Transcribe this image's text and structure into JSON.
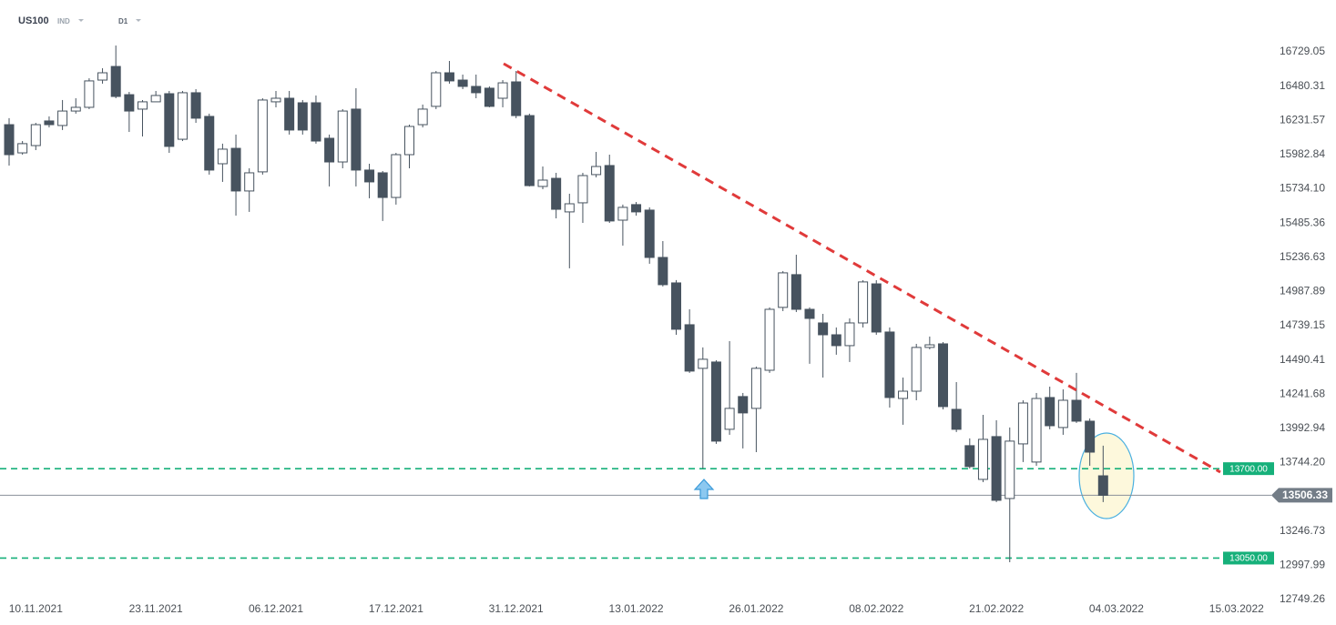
{
  "chart_data": {
    "type": "candlestick",
    "symbol": "US100",
    "market": "IND",
    "interval": "D1",
    "categories": [
      null,
      null,
      "10.11.2021",
      null,
      null,
      null,
      null,
      null,
      null,
      null,
      null,
      "23.11.2021",
      null,
      null,
      null,
      null,
      null,
      null,
      null,
      null,
      "06.12.2021",
      null,
      null,
      null,
      null,
      null,
      null,
      null,
      null,
      "17.12.2021",
      null,
      null,
      null,
      null,
      null,
      null,
      null,
      null,
      "31.12.2021",
      null,
      null,
      null,
      null,
      null,
      null,
      null,
      null,
      "13.01.2022",
      null,
      null,
      null,
      null,
      null,
      null,
      null,
      null,
      "26.01.2022",
      null,
      null,
      null,
      null,
      null,
      null,
      null,
      null,
      "08.02.2022",
      null,
      null,
      null,
      null,
      null,
      null,
      null,
      null,
      "21.02.2022",
      null,
      null,
      null,
      null,
      null,
      null,
      null,
      null,
      "04.03.2022",
      null,
      null,
      null,
      null,
      null,
      null,
      null,
      null,
      "15.03.2022"
    ],
    "open": [
      16200,
      15995,
      16048,
      16227,
      16194,
      16299,
      16326,
      16524,
      16623,
      16418,
      16313,
      16366,
      16425,
      16094,
      16432,
      16260,
      15916,
      16028,
      15718,
      15857,
      16366,
      16392,
      16359,
      16359,
      16101,
      15929,
      16313,
      15870,
      15850,
      15671,
      15982,
      16200,
      16333,
      16577,
      16524,
      16478,
      16465,
      16392,
      16511,
      16266,
      15751,
      15810,
      15566,
      15632,
      15837,
      15903,
      15506,
      15619,
      15579,
      15235,
      15050,
      14746,
      14429,
      14475,
      13986,
      14224,
      14138,
      14415,
      14872,
      15110,
      14858,
      14759,
      14673,
      14594,
      14759,
      15043,
      14693,
      14210,
      14263,
      14581,
      14607,
      14131,
      13867,
      13622,
      13933,
      13483,
      13880,
      13748,
      14217,
      13999,
      14197,
      14045,
      13648,
      null,
      null,
      null,
      null,
      null,
      null,
      null,
      null,
      null,
      null
    ],
    "high": [
      16247,
      16081,
      16213,
      16260,
      16379,
      16392,
      16537,
      16610,
      16775,
      16438,
      16379,
      16445,
      16445,
      16445,
      16458,
      16280,
      16062,
      16128,
      15883,
      16392,
      16445,
      16445,
      16379,
      16412,
      16128,
      16313,
      16465,
      15916,
      15863,
      15995,
      16200,
      16346,
      16590,
      16663,
      16564,
      16564,
      16478,
      16524,
      16590,
      16280,
      15896,
      15850,
      15698,
      15850,
      16002,
      15982,
      15619,
      15638,
      15599,
      15354,
      15070,
      14858,
      14581,
      14488,
      14627,
      14250,
      14442,
      14872,
      15136,
      15255,
      14872,
      14825,
      14726,
      14792,
      15070,
      15070,
      14726,
      14362,
      14607,
      14660,
      14620,
      14329,
      13920,
      14091,
      14052,
      13999,
      14197,
      14250,
      14296,
      14276,
      14396,
      14065,
      13867,
      null,
      null,
      null,
      null,
      null,
      null,
      null,
      null,
      null,
      null
    ],
    "low": [
      15903,
      15982,
      16015,
      16180,
      16161,
      16280,
      16313,
      16498,
      16392,
      16147,
      16114,
      16366,
      15995,
      16081,
      16213,
      15837,
      15784,
      15539,
      15566,
      15837,
      16326,
      16128,
      16128,
      16062,
      15751,
      15883,
      15751,
      15665,
      15500,
      15619,
      15883,
      16180,
      16313,
      16498,
      16458,
      16392,
      16326,
      16326,
      16247,
      15751,
      15731,
      15519,
      15156,
      15486,
      15817,
      15486,
      15321,
      15539,
      15189,
      15024,
      14673,
      14396,
      13701,
      13880,
      13946,
      13847,
      13820,
      14396,
      14845,
      14838,
      14462,
      14362,
      14528,
      14475,
      14726,
      14673,
      14144,
      14019,
      14197,
      14567,
      14131,
      13966,
      13701,
      13602,
      13457,
      13020,
      13748,
      13721,
      13986,
      13946,
      14032,
      13721,
      13457,
      null,
      null,
      null,
      null,
      null,
      null,
      null,
      null,
      null,
      null
    ],
    "close": [
      15982,
      16062,
      16200,
      16200,
      16299,
      16326,
      16518,
      16577,
      16405,
      16299,
      16366,
      16412,
      16042,
      16432,
      16247,
      15870,
      16022,
      15718,
      15850,
      16379,
      16392,
      16161,
      16161,
      16081,
      15929,
      16299,
      15870,
      15784,
      15671,
      15982,
      16187,
      16313,
      16577,
      16518,
      16478,
      16432,
      16333,
      16504,
      16266,
      15757,
      15797,
      15585,
      15625,
      15830,
      15896,
      15500,
      15599,
      15566,
      15235,
      15037,
      14713,
      14409,
      14495,
      13900,
      14138,
      14105,
      14429,
      14858,
      15123,
      14858,
      14792,
      14673,
      14594,
      14759,
      15057,
      14693,
      14217,
      14263,
      14581,
      14600,
      14151,
      13986,
      13715,
      13913,
      13470,
      13900,
      14177,
      14210,
      14012,
      14197,
      14045,
      13820,
      13506.33,
      null,
      null,
      null,
      null,
      null,
      null,
      null,
      null,
      null,
      null
    ],
    "up_color": "#ffffff",
    "down_color": "#47535f",
    "ylim": [
      12610,
      17106
    ],
    "yticks": [
      16729.05,
      16480.31,
      16231.57,
      15982.84,
      {
        "value": 15734.1,
        "label": "15734.10"
      },
      15485.36,
      15236.63,
      14987.89,
      14739.15,
      14490.41,
      14241.68,
      13992.94,
      {
        "value": 13744.2,
        "label": "13744.20"
      },
      13246.73,
      12997.99,
      12749.26
    ],
    "grid": false,
    "levels": [
      {
        "value": 13700,
        "label": "13700.00",
        "color": "#16b07a"
      },
      {
        "value": 13050,
        "label": "13050.00",
        "color": "#16b07a"
      }
    ],
    "last_price": {
      "value": 13506.33,
      "label": "13506.33",
      "color": "#737d87"
    }
  }
}
